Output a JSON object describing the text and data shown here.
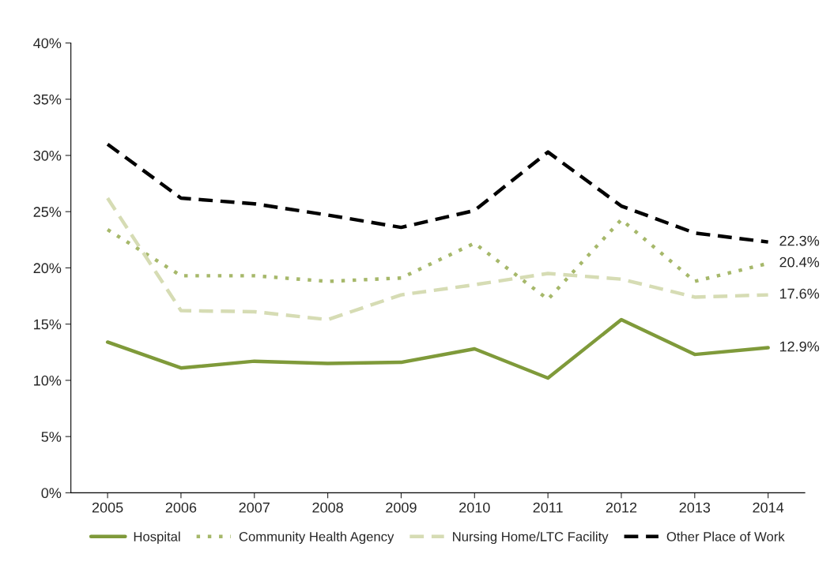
{
  "chart_data": {
    "type": "line",
    "categories": [
      "2005",
      "2006",
      "2007",
      "2008",
      "2009",
      "2010",
      "2011",
      "2012",
      "2013",
      "2014"
    ],
    "series": [
      {
        "name": "Hospital",
        "color": "#7f9a3a",
        "line_style": "solid",
        "values": [
          13.4,
          11.1,
          11.7,
          11.5,
          11.6,
          12.8,
          10.2,
          15.4,
          12.3,
          12.9
        ]
      },
      {
        "name": "Community Health Agency",
        "color": "#a6b86a",
        "line_style": "dotted",
        "values": [
          23.4,
          19.3,
          19.3,
          18.8,
          19.1,
          22.2,
          17.2,
          24.3,
          18.8,
          20.4
        ]
      },
      {
        "name": "Nursing Home/LTC Facility",
        "color": "#d6dcb4",
        "line_style": "dashed",
        "values": [
          26.2,
          16.2,
          16.1,
          15.4,
          17.6,
          18.5,
          19.5,
          19.0,
          17.4,
          17.6
        ]
      },
      {
        "name": "Other Place of Work",
        "color": "#000000",
        "line_style": "dashed",
        "values": [
          31.0,
          26.2,
          25.7,
          24.7,
          23.6,
          25.1,
          30.3,
          25.5,
          23.1,
          22.3
        ]
      }
    ],
    "ylim": [
      0,
      40
    ],
    "yticks": [
      {
        "value": 0,
        "label": "0%"
      },
      {
        "value": 5,
        "label": "5%"
      },
      {
        "value": 10,
        "label": "10%"
      },
      {
        "value": 15,
        "label": "15%"
      },
      {
        "value": 20,
        "label": "20%"
      },
      {
        "value": 25,
        "label": "25%"
      },
      {
        "value": 30,
        "label": "30%"
      },
      {
        "value": 35,
        "label": "35%"
      },
      {
        "value": 40,
        "label": "40%"
      }
    ],
    "annotations": [
      {
        "text": "12.9%",
        "x": "2014",
        "y": 12.9
      },
      {
        "text": "20.4%",
        "x": "2014",
        "y": 20.4
      },
      {
        "text": "17.6%",
        "x": "2014",
        "y": 17.6
      },
      {
        "text": "22.3%",
        "x": "2014",
        "y": 22.3
      }
    ],
    "grid": false,
    "legend": "bottom",
    "marker": "none"
  }
}
